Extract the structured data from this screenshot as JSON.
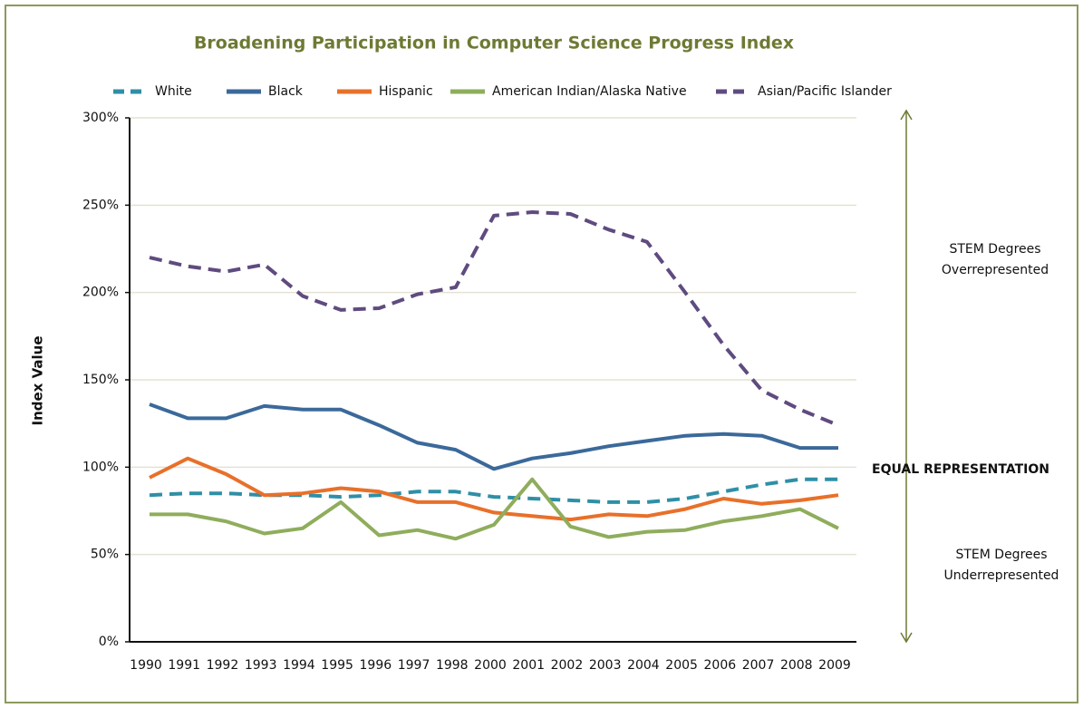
{
  "chart_data": {
    "type": "line",
    "title": "Broadening Participation in Computer Science Progress Index",
    "ylabel": "Index Value",
    "categories": [
      "1990",
      "1991",
      "1992",
      "1993",
      "1994",
      "1995",
      "1996",
      "1997",
      "1998",
      "2000",
      "2001",
      "2002",
      "2003",
      "2004",
      "2005",
      "2006",
      "2007",
      "2008",
      "2009"
    ],
    "series": [
      {
        "name": "White",
        "color": "#2f8fa6",
        "dashed": true,
        "values": [
          84,
          85,
          85,
          84,
          84,
          83,
          84,
          86,
          86,
          83,
          82,
          81,
          80,
          80,
          82,
          86,
          90,
          93,
          93
        ]
      },
      {
        "name": "Black",
        "color": "#3b699a",
        "dashed": false,
        "values": [
          136,
          128,
          128,
          135,
          133,
          133,
          124,
          114,
          110,
          99,
          105,
          108,
          112,
          115,
          118,
          119,
          118,
          111,
          111
        ]
      },
      {
        "name": "Hispanic",
        "color": "#e8702a",
        "dashed": false,
        "values": [
          94,
          105,
          96,
          84,
          85,
          88,
          86,
          80,
          80,
          74,
          72,
          70,
          73,
          72,
          76,
          82,
          79,
          81,
          84
        ]
      },
      {
        "name": "American Indian/Alaska Native",
        "color": "#8fad5c",
        "dashed": false,
        "values": [
          73,
          73,
          69,
          62,
          65,
          80,
          61,
          64,
          59,
          67,
          93,
          66,
          60,
          63,
          64,
          69,
          72,
          76,
          65
        ]
      },
      {
        "name": "Asian/Pacific Islander",
        "color": "#5f4b7f",
        "dashed": true,
        "values": [
          220,
          215,
          212,
          216,
          198,
          190,
          191,
          199,
          203,
          244,
          246,
          245,
          236,
          229,
          200,
          170,
          144,
          133,
          124
        ]
      }
    ],
    "ylim": [
      0,
      300
    ],
    "yticks": [
      {
        "value": 0,
        "label": "0%"
      },
      {
        "value": 50,
        "label": "50%"
      },
      {
        "value": 100,
        "label": "100%"
      },
      {
        "value": 150,
        "label": "150%"
      },
      {
        "value": 200,
        "label": "200%"
      },
      {
        "value": 250,
        "label": "250%"
      },
      {
        "value": 300,
        "label": "300%"
      }
    ],
    "grid": true,
    "annotations": {
      "over": [
        "STEM Degrees",
        "Overrepresented"
      ],
      "equal": "EQUAL REPRESENTATION",
      "under": [
        "STEM Degrees",
        "Underrepresented"
      ]
    }
  }
}
